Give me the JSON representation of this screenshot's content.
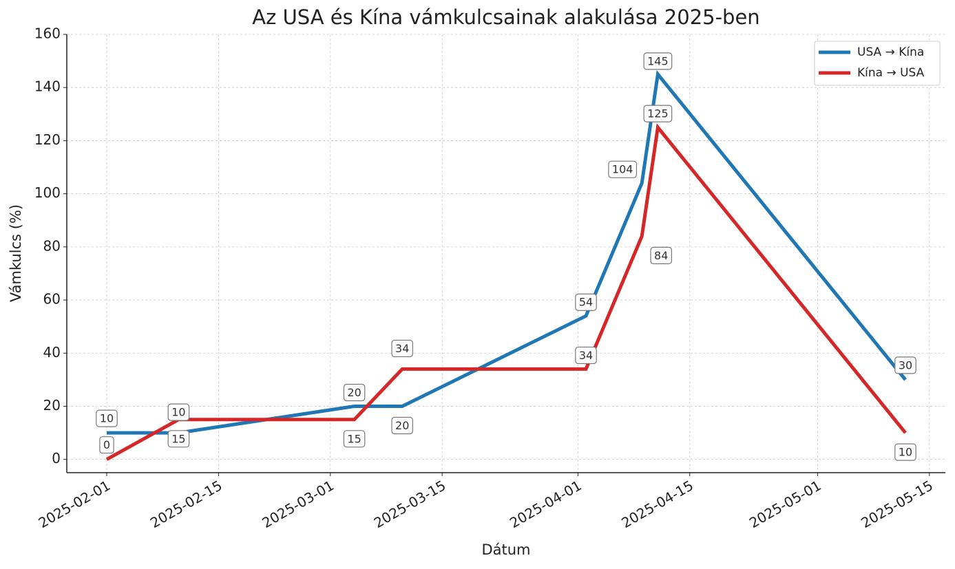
{
  "chart_data": {
    "type": "line",
    "title": "Az USA és Kína vámkulcsainak alakulása 2025-ben",
    "x_label": "Dátum",
    "y_label": "Vámkulcs (%)",
    "x": [
      "2025-02-01",
      "2025-02-10",
      "2025-03-04",
      "2025-03-10",
      "2025-04-02",
      "2025-04-09",
      "2025-04-11",
      "2025-05-12"
    ],
    "series": [
      {
        "name": "USA → Kína",
        "color": "#1f77b4",
        "values": [
          10,
          10,
          20,
          20,
          54,
          104,
          145,
          30
        ]
      },
      {
        "name": "Kína → USA",
        "color": "#d62728",
        "values": [
          0,
          15,
          15,
          34,
          34,
          84,
          125,
          10
        ]
      }
    ],
    "xlim": [
      "2025-01-27",
      "2025-05-17"
    ],
    "xticks": [
      "2025-02-01",
      "2025-02-15",
      "2025-03-01",
      "2025-03-15",
      "2025-04-01",
      "2025-04-15",
      "2025-05-01",
      "2025-05-15"
    ],
    "ylim": [
      -5,
      160
    ],
    "yticks": [
      0,
      20,
      40,
      60,
      80,
      100,
      120,
      140,
      160
    ],
    "grid": true,
    "legend": "upper right"
  }
}
